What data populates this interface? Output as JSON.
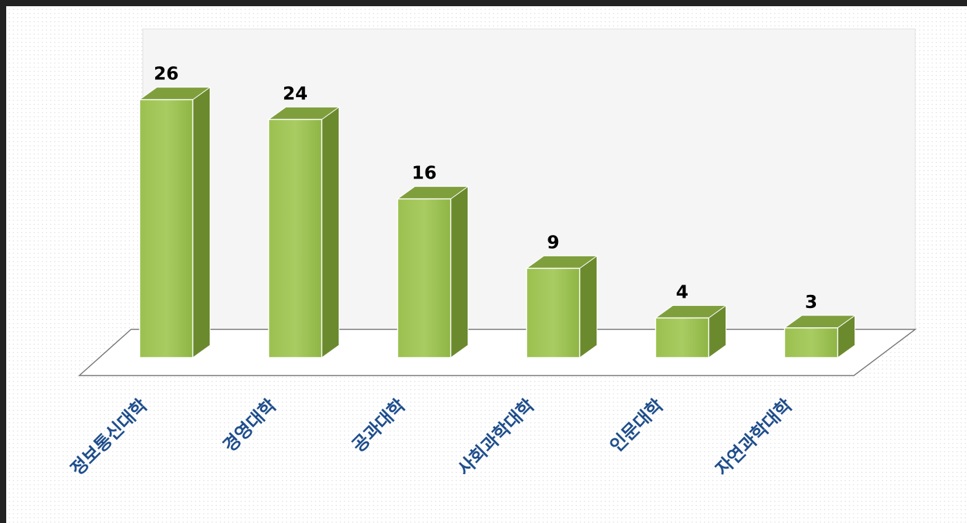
{
  "chart_data": {
    "type": "bar3d",
    "categories": [
      "정보통신대학",
      "경영대학",
      "공과대학",
      "사회과학대학",
      "인문대학",
      "자연과학대학"
    ],
    "values": [
      26,
      24,
      16,
      9,
      4,
      3
    ],
    "color": "#9bbb59"
  }
}
